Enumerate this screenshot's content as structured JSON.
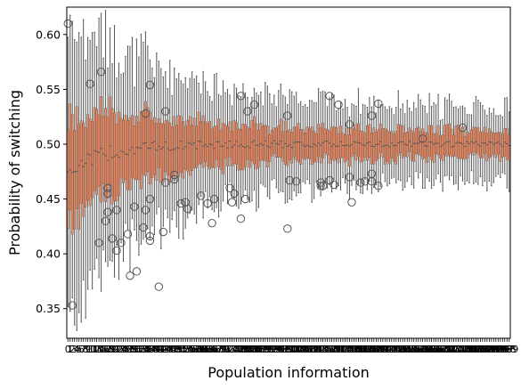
{
  "chart_data": {
    "type": "box",
    "title": "",
    "xlabel": "Population information",
    "ylabel": "Probability of switching",
    "ylim": [
      0.323,
      0.625
    ],
    "yticks": [
      0.35,
      0.4,
      0.45,
      0.5,
      0.55,
      0.6
    ],
    "ytick_labels": [
      "0.35",
      "0.40",
      "0.45",
      "0.50",
      "0.55",
      "0.60"
    ],
    "n_categories": 200,
    "xtick_note": "200 categories labelled 0–199; tick labels overlap into an illegible band",
    "box_color": "#e6855e",
    "median_color": "#555555",
    "center_value": 0.5,
    "box_half_iqr_start": 0.05,
    "box_half_iqr_end": 0.012,
    "whisker_half_span_start": 0.11,
    "whisker_half_span_end": 0.025,
    "outliers": [
      {
        "i": 0,
        "y": 0.61
      },
      {
        "i": 2,
        "y": 0.353
      },
      {
        "i": 10,
        "y": 0.555
      },
      {
        "i": 14,
        "y": 0.41
      },
      {
        "i": 15,
        "y": 0.566
      },
      {
        "i": 17,
        "y": 0.43
      },
      {
        "i": 18,
        "y": 0.46
      },
      {
        "i": 18,
        "y": 0.455
      },
      {
        "i": 18,
        "y": 0.438
      },
      {
        "i": 20,
        "y": 0.414
      },
      {
        "i": 22,
        "y": 0.44
      },
      {
        "i": 22,
        "y": 0.403
      },
      {
        "i": 24,
        "y": 0.41
      },
      {
        "i": 27,
        "y": 0.418
      },
      {
        "i": 28,
        "y": 0.38
      },
      {
        "i": 30,
        "y": 0.443
      },
      {
        "i": 31,
        "y": 0.384
      },
      {
        "i": 34,
        "y": 0.424
      },
      {
        "i": 35,
        "y": 0.44
      },
      {
        "i": 35,
        "y": 0.528
      },
      {
        "i": 37,
        "y": 0.554
      },
      {
        "i": 37,
        "y": 0.45
      },
      {
        "i": 37,
        "y": 0.416
      },
      {
        "i": 37,
        "y": 0.412
      },
      {
        "i": 41,
        "y": 0.37
      },
      {
        "i": 43,
        "y": 0.42
      },
      {
        "i": 44,
        "y": 0.53
      },
      {
        "i": 44,
        "y": 0.465
      },
      {
        "i": 48,
        "y": 0.468
      },
      {
        "i": 48,
        "y": 0.472
      },
      {
        "i": 51,
        "y": 0.446
      },
      {
        "i": 53,
        "y": 0.447
      },
      {
        "i": 54,
        "y": 0.441
      },
      {
        "i": 60,
        "y": 0.453
      },
      {
        "i": 63,
        "y": 0.446
      },
      {
        "i": 65,
        "y": 0.428
      },
      {
        "i": 66,
        "y": 0.45
      },
      {
        "i": 73,
        "y": 0.46
      },
      {
        "i": 74,
        "y": 0.447
      },
      {
        "i": 75,
        "y": 0.455
      },
      {
        "i": 78,
        "y": 0.544
      },
      {
        "i": 78,
        "y": 0.432
      },
      {
        "i": 80,
        "y": 0.45
      },
      {
        "i": 81,
        "y": 0.53
      },
      {
        "i": 84,
        "y": 0.536
      },
      {
        "i": 99,
        "y": 0.526
      },
      {
        "i": 99,
        "y": 0.423
      },
      {
        "i": 100,
        "y": 0.467
      },
      {
        "i": 103,
        "y": 0.466
      },
      {
        "i": 114,
        "y": 0.465
      },
      {
        "i": 114,
        "y": 0.462
      },
      {
        "i": 115,
        "y": 0.462
      },
      {
        "i": 118,
        "y": 0.544
      },
      {
        "i": 118,
        "y": 0.467
      },
      {
        "i": 120,
        "y": 0.463
      },
      {
        "i": 122,
        "y": 0.536
      },
      {
        "i": 127,
        "y": 0.518
      },
      {
        "i": 127,
        "y": 0.47
      },
      {
        "i": 128,
        "y": 0.447
      },
      {
        "i": 132,
        "y": 0.465
      },
      {
        "i": 134,
        "y": 0.466
      },
      {
        "i": 137,
        "y": 0.526
      },
      {
        "i": 137,
        "y": 0.473
      },
      {
        "i": 137,
        "y": 0.466
      },
      {
        "i": 140,
        "y": 0.537
      },
      {
        "i": 140,
        "y": 0.462
      },
      {
        "i": 160,
        "y": 0.505
      },
      {
        "i": 178,
        "y": 0.515
      }
    ]
  }
}
